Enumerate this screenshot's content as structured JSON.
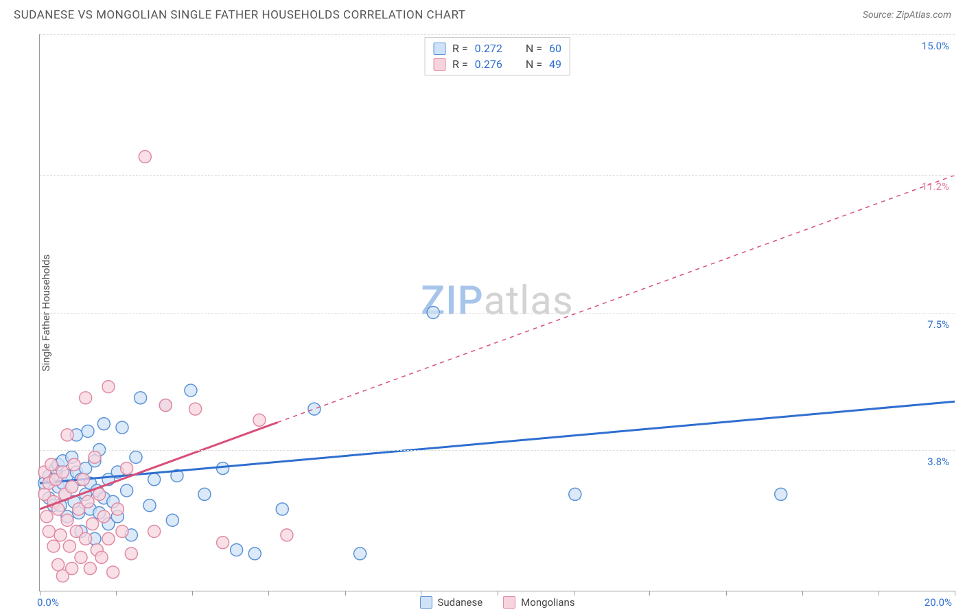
{
  "title": "SUDANESE VS MONGOLIAN SINGLE FATHER HOUSEHOLDS CORRELATION CHART",
  "source": "Source: ZipAtlas.com",
  "ylabel": "Single Father Households",
  "watermark": {
    "part1": "ZIP",
    "part2": "atlas"
  },
  "chart": {
    "type": "scatter",
    "background_color": "#ffffff",
    "grid_color": "#dddddd",
    "axis_color": "#999999",
    "xlim": [
      0,
      20
    ],
    "ylim": [
      0,
      15
    ],
    "x_min_label": "0.0%",
    "x_max_label": "20.0%",
    "x_label_color": "#2f6fd0",
    "xtick_positions": [
      0,
      1.67,
      3.33,
      5.0,
      6.67,
      8.33,
      10.0,
      11.67,
      13.33,
      15.0,
      16.67,
      18.33,
      20.0
    ],
    "ygrid": [
      {
        "value": 15.0,
        "label": "15.0%",
        "color": "#2f6fd0"
      },
      {
        "value": 11.2,
        "label": "11.2%",
        "color": "#e17b9a"
      },
      {
        "value": 7.5,
        "label": "7.5%",
        "color": "#2f6fd0"
      },
      {
        "value": 3.8,
        "label": "3.8%",
        "color": "#2f6fd0"
      }
    ],
    "series": [
      {
        "name": "Sudanese",
        "marker_fill": "#cfe2f7",
        "marker_stroke": "#5b93d6",
        "marker_radius": 9,
        "trend_color": "#2f6fd0",
        "trend_width": 3,
        "trend_dash": "none",
        "trend_from": [
          0,
          2.9
        ],
        "trend_to": [
          20,
          5.1
        ],
        "stats": {
          "R": "0.272",
          "N": "60",
          "value_color": "#2f6fd0"
        },
        "points": [
          [
            0.1,
            2.9
          ],
          [
            0.2,
            3.1
          ],
          [
            0.2,
            2.5
          ],
          [
            0.3,
            3.0
          ],
          [
            0.3,
            2.3
          ],
          [
            0.35,
            3.3
          ],
          [
            0.4,
            2.8
          ],
          [
            0.4,
            3.4
          ],
          [
            0.45,
            2.3
          ],
          [
            0.5,
            2.9
          ],
          [
            0.5,
            3.5
          ],
          [
            0.55,
            2.6
          ],
          [
            0.6,
            3.1
          ],
          [
            0.6,
            2.0
          ],
          [
            0.7,
            2.8
          ],
          [
            0.7,
            3.6
          ],
          [
            0.75,
            2.4
          ],
          [
            0.8,
            3.2
          ],
          [
            0.8,
            4.2
          ],
          [
            0.85,
            2.1
          ],
          [
            0.9,
            3.0
          ],
          [
            0.9,
            1.6
          ],
          [
            1.0,
            3.3
          ],
          [
            1.0,
            2.6
          ],
          [
            1.05,
            4.3
          ],
          [
            1.1,
            2.9
          ],
          [
            1.1,
            2.2
          ],
          [
            1.2,
            3.5
          ],
          [
            1.2,
            1.4
          ],
          [
            1.25,
            2.7
          ],
          [
            1.3,
            2.1
          ],
          [
            1.3,
            3.8
          ],
          [
            1.4,
            2.5
          ],
          [
            1.4,
            4.5
          ],
          [
            1.5,
            3.0
          ],
          [
            1.5,
            1.8
          ],
          [
            1.6,
            2.4
          ],
          [
            1.7,
            3.2
          ],
          [
            1.7,
            2.0
          ],
          [
            1.8,
            4.4
          ],
          [
            1.9,
            2.7
          ],
          [
            2.0,
            1.5
          ],
          [
            2.1,
            3.6
          ],
          [
            2.2,
            5.2
          ],
          [
            2.4,
            2.3
          ],
          [
            2.5,
            3.0
          ],
          [
            2.75,
            5.0
          ],
          [
            2.9,
            1.9
          ],
          [
            3.0,
            3.1
          ],
          [
            3.3,
            5.4
          ],
          [
            3.6,
            2.6
          ],
          [
            4.0,
            3.3
          ],
          [
            4.3,
            1.1
          ],
          [
            4.7,
            1.0
          ],
          [
            5.3,
            2.2
          ],
          [
            6.0,
            4.9
          ],
          [
            7.0,
            1.0
          ],
          [
            8.6,
            7.5
          ],
          [
            11.7,
            2.6
          ],
          [
            16.2,
            2.6
          ]
        ]
      },
      {
        "name": "Mongolians",
        "marker_fill": "#f7d4dd",
        "marker_stroke": "#e08aa3",
        "marker_radius": 9,
        "trend_color": "#d94f78",
        "trend_width": 3,
        "trend_solid_to_x": 5.2,
        "trend_dash": "6,6",
        "trend_from": [
          0,
          2.2
        ],
        "trend_to": [
          20,
          11.2
        ],
        "stats": {
          "R": "0.276",
          "N": "49",
          "value_color": "#2f6fd0"
        },
        "points": [
          [
            0.1,
            2.6
          ],
          [
            0.1,
            3.2
          ],
          [
            0.15,
            2.0
          ],
          [
            0.2,
            2.9
          ],
          [
            0.2,
            1.6
          ],
          [
            0.25,
            3.4
          ],
          [
            0.3,
            2.4
          ],
          [
            0.3,
            1.2
          ],
          [
            0.35,
            3.0
          ],
          [
            0.4,
            0.7
          ],
          [
            0.4,
            2.2
          ],
          [
            0.45,
            1.5
          ],
          [
            0.5,
            3.2
          ],
          [
            0.5,
            0.4
          ],
          [
            0.55,
            2.6
          ],
          [
            0.6,
            1.9
          ],
          [
            0.6,
            4.2
          ],
          [
            0.65,
            1.2
          ],
          [
            0.7,
            2.8
          ],
          [
            0.7,
            0.6
          ],
          [
            0.75,
            3.4
          ],
          [
            0.8,
            1.6
          ],
          [
            0.85,
            2.2
          ],
          [
            0.9,
            0.9
          ],
          [
            0.95,
            3.0
          ],
          [
            1.0,
            1.4
          ],
          [
            1.0,
            5.2
          ],
          [
            1.05,
            2.4
          ],
          [
            1.1,
            0.6
          ],
          [
            1.15,
            1.8
          ],
          [
            1.2,
            3.6
          ],
          [
            1.25,
            1.1
          ],
          [
            1.3,
            2.6
          ],
          [
            1.35,
            0.9
          ],
          [
            1.4,
            2.0
          ],
          [
            1.5,
            1.4
          ],
          [
            1.5,
            5.5
          ],
          [
            1.6,
            0.5
          ],
          [
            1.7,
            2.2
          ],
          [
            1.8,
            1.6
          ],
          [
            1.9,
            3.3
          ],
          [
            2.0,
            1.0
          ],
          [
            2.3,
            11.7
          ],
          [
            2.5,
            1.6
          ],
          [
            2.75,
            5.0
          ],
          [
            3.4,
            4.9
          ],
          [
            4.0,
            1.3
          ],
          [
            4.8,
            4.6
          ],
          [
            5.4,
            1.5
          ]
        ]
      }
    ]
  }
}
